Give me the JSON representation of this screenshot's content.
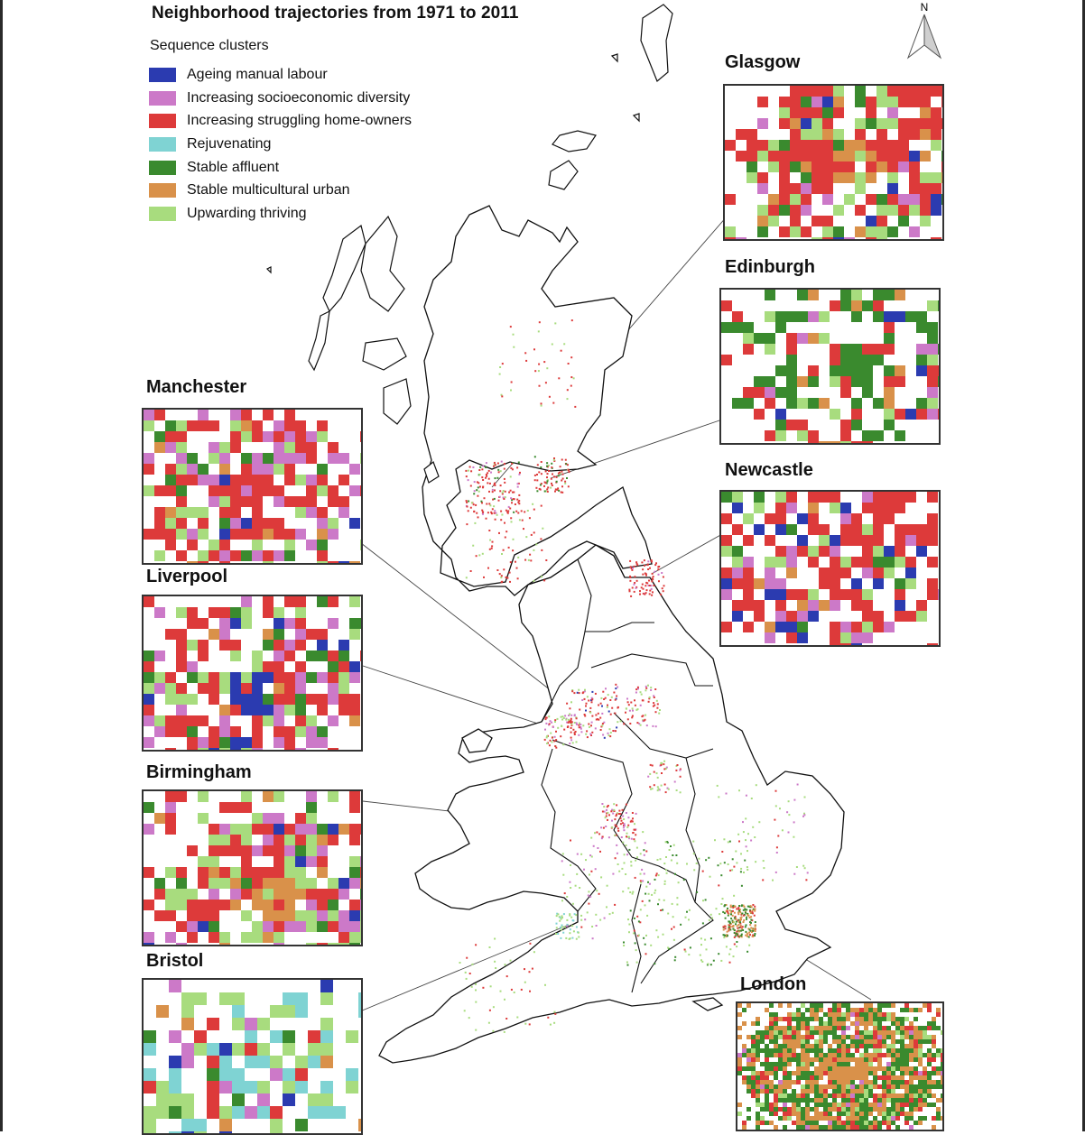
{
  "title": "Neighborhood trajectories from 1971 to 2011",
  "legend": {
    "title": "Sequence clusters",
    "items": [
      {
        "key": "ageing",
        "label": "Ageing manual labour",
        "color": "#2b3bb0"
      },
      {
        "key": "diversity",
        "label": "Increasing socioeconomic diversity",
        "color": "#cc79c8"
      },
      {
        "key": "struggling",
        "label": "Increasing struggling home-owners",
        "color": "#dd3a3a"
      },
      {
        "key": "rejuvenating",
        "label": "Rejuvenating",
        "color": "#7fd3d3"
      },
      {
        "key": "affluent",
        "label": "Stable affluent",
        "color": "#3a8a2e"
      },
      {
        "key": "multicultural",
        "label": "Stable multicultural urban",
        "color": "#d9914a"
      },
      {
        "key": "thriving",
        "label": "Upwarding thriving",
        "color": "#a8dc7e"
      }
    ]
  },
  "north_arrow": {
    "label": "N"
  },
  "insets": [
    {
      "key": "glasgow",
      "label": "Glasgow",
      "mix": {
        "struggling": 0.38,
        "thriving": 0.16,
        "affluent": 0.1,
        "multicultural": 0.05,
        "diversity": 0.05,
        "ageing": 0.02,
        "empty": 0.24
      }
    },
    {
      "key": "edinburgh",
      "label": "Edinburgh",
      "mix": {
        "affluent": 0.2,
        "struggling": 0.16,
        "thriving": 0.08,
        "multicultural": 0.04,
        "diversity": 0.03,
        "ageing": 0.01,
        "empty": 0.48
      }
    },
    {
      "key": "newcastle",
      "label": "Newcastle",
      "mix": {
        "struggling": 0.34,
        "diversity": 0.09,
        "thriving": 0.1,
        "ageing": 0.04,
        "affluent": 0.04,
        "multicultural": 0.02,
        "empty": 0.37
      }
    },
    {
      "key": "manchester",
      "label": "Manchester",
      "mix": {
        "struggling": 0.3,
        "diversity": 0.12,
        "thriving": 0.14,
        "affluent": 0.06,
        "multicultural": 0.03,
        "ageing": 0.03,
        "empty": 0.32
      }
    },
    {
      "key": "liverpool",
      "label": "Liverpool",
      "mix": {
        "struggling": 0.3,
        "thriving": 0.14,
        "diversity": 0.1,
        "ageing": 0.06,
        "affluent": 0.06,
        "multicultural": 0.03,
        "empty": 0.31
      }
    },
    {
      "key": "birmingham",
      "label": "Birmingham",
      "mix": {
        "struggling": 0.32,
        "diversity": 0.14,
        "thriving": 0.16,
        "affluent": 0.06,
        "multicultural": 0.05,
        "ageing": 0.02,
        "empty": 0.25
      }
    },
    {
      "key": "bristol",
      "label": "Bristol",
      "mix": {
        "thriving": 0.22,
        "rejuvenating": 0.14,
        "diversity": 0.07,
        "struggling": 0.04,
        "affluent": 0.04,
        "multicultural": 0.04,
        "ageing": 0.03,
        "empty": 0.42
      }
    },
    {
      "key": "london",
      "label": "London",
      "mix": {
        "affluent": 0.35,
        "multicultural": 0.3,
        "struggling": 0.1,
        "thriving": 0.06,
        "diversity": 0.03,
        "empty": 0.16
      }
    }
  ]
}
